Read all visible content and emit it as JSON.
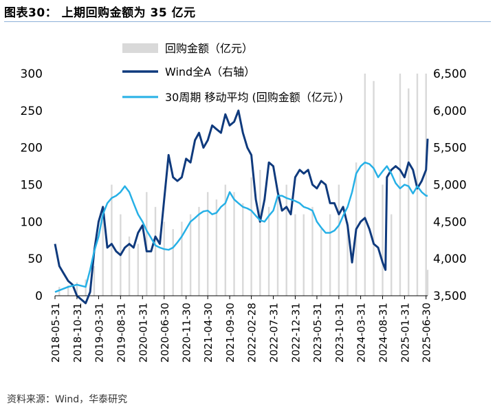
{
  "header": {
    "title": "图表30： 上期回购金额为 35 亿元"
  },
  "footer": {
    "source": "资料来源：Wind，华泰研究"
  },
  "chart_data": {
    "type": "bar+line",
    "title": "上期回购金额为 35 亿元",
    "legend_position": "top-left",
    "y_left": {
      "ylim": [
        0,
        300
      ],
      "ticks": [
        0,
        50,
        100,
        150,
        200,
        250,
        300
      ],
      "tick_labels": [
        "0",
        "50",
        "100",
        "150",
        "200",
        "250",
        "300"
      ]
    },
    "y_right": {
      "ylim": [
        3500,
        6500
      ],
      "ticks": [
        3500,
        4000,
        4500,
        5000,
        5500,
        6000,
        6500
      ],
      "tick_labels": [
        "3,500",
        "4,000",
        "4,500",
        "5,000",
        "5,500",
        "6,000",
        "6,500"
      ]
    },
    "x_ticks": [
      "2018-05-31",
      "2018-10-31",
      "2019-03-31",
      "2019-08-31",
      "2020-01-31",
      "2020-06-30",
      "2020-11-30",
      "2021-04-30",
      "2021-09-30",
      "2022-02-28",
      "2022-07-31",
      "2022-12-31",
      "2023-05-31",
      "2023-10-31",
      "2024-03-31",
      "2024-08-31",
      "2025-01-31",
      "2025-06-30"
    ],
    "x_range": [
      "2018-05-31",
      "2025-07-11"
    ],
    "series": [
      {
        "name": "回购金额（亿元）",
        "kind": "bar",
        "axis": "left",
        "color": "#d9d9d9",
        "points": [
          [
            "2018-06-30",
            12
          ],
          [
            "2018-08-31",
            14
          ],
          [
            "2018-10-31",
            18
          ],
          [
            "2018-12-31",
            22
          ],
          [
            "2019-02-28",
            40
          ],
          [
            "2019-04-30",
            120
          ],
          [
            "2019-06-30",
            150
          ],
          [
            "2019-08-31",
            110
          ],
          [
            "2019-10-31",
            80
          ],
          [
            "2019-12-31",
            70
          ],
          [
            "2020-02-29",
            140
          ],
          [
            "2020-04-30",
            120
          ],
          [
            "2020-06-30",
            100
          ],
          [
            "2020-08-31",
            90
          ],
          [
            "2020-10-31",
            100
          ],
          [
            "2020-12-31",
            110
          ],
          [
            "2021-02-28",
            120
          ],
          [
            "2021-04-30",
            140
          ],
          [
            "2021-06-30",
            130
          ],
          [
            "2021-08-31",
            150
          ],
          [
            "2021-10-31",
            140
          ],
          [
            "2021-12-31",
            125
          ],
          [
            "2022-02-28",
            160
          ],
          [
            "2022-04-30",
            170
          ],
          [
            "2022-06-30",
            120
          ],
          [
            "2022-08-31",
            140
          ],
          [
            "2022-10-31",
            150
          ],
          [
            "2022-12-31",
            110
          ],
          [
            "2023-02-28",
            110
          ],
          [
            "2023-04-30",
            120
          ],
          [
            "2023-06-30",
            90
          ],
          [
            "2023-08-31",
            110
          ],
          [
            "2023-10-31",
            150
          ],
          [
            "2023-12-31",
            100
          ],
          [
            "2024-02-29",
            180
          ],
          [
            "2024-04-30",
            300
          ],
          [
            "2024-06-30",
            290
          ],
          [
            "2024-08-31",
            150
          ],
          [
            "2024-10-31",
            110
          ],
          [
            "2024-12-31",
            300
          ],
          [
            "2025-02-28",
            280
          ],
          [
            "2025-04-30",
            300
          ],
          [
            "2025-06-30",
            300
          ],
          [
            "2025-07-11",
            35
          ]
        ]
      },
      {
        "name": "Wind全A（右轴）",
        "kind": "line",
        "axis": "right",
        "color": "#0f3a7d",
        "points": [
          [
            "2018-05-31",
            4200
          ],
          [
            "2018-06-30",
            3900
          ],
          [
            "2018-07-31",
            3800
          ],
          [
            "2018-08-31",
            3700
          ],
          [
            "2018-09-30",
            3650
          ],
          [
            "2018-10-31",
            3500
          ],
          [
            "2018-11-30",
            3450
          ],
          [
            "2018-12-31",
            3400
          ],
          [
            "2019-01-31",
            3550
          ],
          [
            "2019-02-28",
            4100
          ],
          [
            "2019-03-31",
            4500
          ],
          [
            "2019-04-30",
            4700
          ],
          [
            "2019-05-31",
            4150
          ],
          [
            "2019-06-30",
            4200
          ],
          [
            "2019-07-31",
            4100
          ],
          [
            "2019-08-31",
            4050
          ],
          [
            "2019-09-30",
            4150
          ],
          [
            "2019-10-31",
            4200
          ],
          [
            "2019-11-30",
            4150
          ],
          [
            "2019-12-31",
            4350
          ],
          [
            "2020-01-31",
            4450
          ],
          [
            "2020-02-29",
            4100
          ],
          [
            "2020-03-31",
            4100
          ],
          [
            "2020-04-30",
            4300
          ],
          [
            "2020-05-31",
            4200
          ],
          [
            "2020-06-30",
            4800
          ],
          [
            "2020-07-31",
            5400
          ],
          [
            "2020-08-31",
            5100
          ],
          [
            "2020-09-30",
            5050
          ],
          [
            "2020-10-31",
            5100
          ],
          [
            "2020-11-30",
            5350
          ],
          [
            "2020-12-31",
            5300
          ],
          [
            "2021-01-31",
            5600
          ],
          [
            "2021-02-28",
            5700
          ],
          [
            "2021-03-31",
            5500
          ],
          [
            "2021-04-30",
            5600
          ],
          [
            "2021-05-31",
            5800
          ],
          [
            "2021-06-30",
            5750
          ],
          [
            "2021-07-31",
            5700
          ],
          [
            "2021-08-31",
            5950
          ],
          [
            "2021-09-30",
            5800
          ],
          [
            "2021-10-31",
            5850
          ],
          [
            "2021-11-30",
            6000
          ],
          [
            "2021-12-31",
            5700
          ],
          [
            "2022-01-31",
            5500
          ],
          [
            "2022-02-28",
            5400
          ],
          [
            "2022-03-31",
            4800
          ],
          [
            "2022-04-30",
            4500
          ],
          [
            "2022-05-31",
            4800
          ],
          [
            "2022-06-30",
            5300
          ],
          [
            "2022-07-31",
            5250
          ],
          [
            "2022-08-31",
            4900
          ],
          [
            "2022-09-30",
            4650
          ],
          [
            "2022-10-31",
            4700
          ],
          [
            "2022-11-30",
            4600
          ],
          [
            "2022-12-31",
            5100
          ],
          [
            "2023-01-31",
            5200
          ],
          [
            "2023-02-28",
            5150
          ],
          [
            "2023-03-31",
            5200
          ],
          [
            "2023-04-30",
            5000
          ],
          [
            "2023-05-31",
            4950
          ],
          [
            "2023-06-30",
            5050
          ],
          [
            "2023-07-31",
            5000
          ],
          [
            "2023-08-31",
            4750
          ],
          [
            "2023-09-30",
            4750
          ],
          [
            "2023-10-31",
            4600
          ],
          [
            "2023-11-30",
            4700
          ],
          [
            "2023-12-31",
            4450
          ],
          [
            "2024-01-31",
            3950
          ],
          [
            "2024-02-29",
            4400
          ],
          [
            "2024-03-31",
            4500
          ],
          [
            "2024-04-30",
            4550
          ],
          [
            "2024-05-31",
            4400
          ],
          [
            "2024-06-30",
            4200
          ],
          [
            "2024-07-31",
            4150
          ],
          [
            "2024-08-31",
            3950
          ],
          [
            "2024-09-20",
            3850
          ],
          [
            "2024-09-30",
            5100
          ],
          [
            "2024-10-31",
            5200
          ],
          [
            "2024-11-30",
            5250
          ],
          [
            "2024-12-31",
            5200
          ],
          [
            "2025-01-31",
            5100
          ],
          [
            "2025-02-28",
            5300
          ],
          [
            "2025-03-31",
            5200
          ],
          [
            "2025-04-30",
            4950
          ],
          [
            "2025-05-31",
            5050
          ],
          [
            "2025-06-30",
            5200
          ],
          [
            "2025-07-11",
            5620
          ]
        ]
      },
      {
        "name": "30周期 移动平均 (回购金额（亿元）)",
        "kind": "line",
        "axis": "left",
        "color": "#26b0e6",
        "points": [
          [
            "2018-05-31",
            5
          ],
          [
            "2018-08-31",
            12
          ],
          [
            "2018-10-31",
            15
          ],
          [
            "2018-12-31",
            12
          ],
          [
            "2019-01-31",
            35
          ],
          [
            "2019-02-28",
            60
          ],
          [
            "2019-03-31",
            80
          ],
          [
            "2019-04-30",
            110
          ],
          [
            "2019-05-31",
            125
          ],
          [
            "2019-06-30",
            132
          ],
          [
            "2019-07-31",
            135
          ],
          [
            "2019-08-31",
            140
          ],
          [
            "2019-09-30",
            148
          ],
          [
            "2019-10-31",
            140
          ],
          [
            "2019-11-30",
            125
          ],
          [
            "2019-12-31",
            110
          ],
          [
            "2020-01-31",
            100
          ],
          [
            "2020-02-29",
            88
          ],
          [
            "2020-03-31",
            78
          ],
          [
            "2020-04-30",
            68
          ],
          [
            "2020-05-31",
            65
          ],
          [
            "2020-06-30",
            63
          ],
          [
            "2020-07-31",
            62
          ],
          [
            "2020-08-31",
            65
          ],
          [
            "2020-09-30",
            72
          ],
          [
            "2020-10-31",
            80
          ],
          [
            "2020-11-30",
            90
          ],
          [
            "2020-12-31",
            100
          ],
          [
            "2021-01-31",
            105
          ],
          [
            "2021-02-28",
            110
          ],
          [
            "2021-03-31",
            114
          ],
          [
            "2021-04-30",
            115
          ],
          [
            "2021-05-31",
            110
          ],
          [
            "2021-06-30",
            112
          ],
          [
            "2021-07-31",
            120
          ],
          [
            "2021-08-31",
            125
          ],
          [
            "2021-09-30",
            140
          ],
          [
            "2021-10-31",
            130
          ],
          [
            "2021-11-30",
            125
          ],
          [
            "2021-12-31",
            120
          ],
          [
            "2022-01-31",
            118
          ],
          [
            "2022-02-28",
            115
          ],
          [
            "2022-03-31",
            108
          ],
          [
            "2022-04-30",
            102
          ],
          [
            "2022-05-31",
            100
          ],
          [
            "2022-06-30",
            108
          ],
          [
            "2022-07-31",
            115
          ],
          [
            "2022-08-31",
            135
          ],
          [
            "2022-09-30",
            135
          ],
          [
            "2022-10-31",
            132
          ],
          [
            "2022-11-30",
            130
          ],
          [
            "2022-12-31",
            128
          ],
          [
            "2023-01-31",
            125
          ],
          [
            "2023-02-28",
            120
          ],
          [
            "2023-03-31",
            118
          ],
          [
            "2023-04-30",
            115
          ],
          [
            "2023-05-31",
            100
          ],
          [
            "2023-06-30",
            92
          ],
          [
            "2023-07-31",
            85
          ],
          [
            "2023-08-31",
            85
          ],
          [
            "2023-09-30",
            88
          ],
          [
            "2023-10-31",
            95
          ],
          [
            "2023-11-30",
            108
          ],
          [
            "2023-12-31",
            120
          ],
          [
            "2024-01-31",
            140
          ],
          [
            "2024-02-29",
            165
          ],
          [
            "2024-03-31",
            175
          ],
          [
            "2024-04-30",
            180
          ],
          [
            "2024-05-31",
            178
          ],
          [
            "2024-06-30",
            172
          ],
          [
            "2024-07-31",
            160
          ],
          [
            "2024-08-31",
            168
          ],
          [
            "2024-09-30",
            175
          ],
          [
            "2024-10-31",
            165
          ],
          [
            "2024-11-30",
            152
          ],
          [
            "2024-12-31",
            145
          ],
          [
            "2025-01-31",
            150
          ],
          [
            "2025-02-28",
            148
          ],
          [
            "2025-03-31",
            138
          ],
          [
            "2025-04-30",
            148
          ],
          [
            "2025-05-31",
            140
          ],
          [
            "2025-06-30",
            135
          ],
          [
            "2025-07-11",
            135
          ]
        ]
      }
    ]
  }
}
